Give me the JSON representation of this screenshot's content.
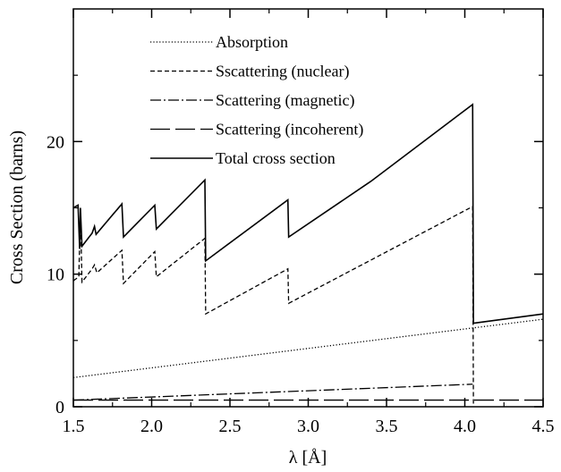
{
  "chart_data": {
    "type": "line",
    "xlabel": "λ [Å]",
    "ylabel": "Cross Section (barns)",
    "xlim": [
      1.5,
      4.5
    ],
    "ylim": [
      0,
      30
    ],
    "xticks": [
      1.5,
      2.0,
      2.5,
      3.0,
      3.5,
      4.0,
      4.5
    ],
    "xtick_labels": [
      "1.5",
      "2.0",
      "2.5",
      "3.0",
      "3.5",
      "4.0",
      "4.5"
    ],
    "yticks": [
      0,
      10,
      20
    ],
    "ytick_labels": [
      "0",
      "10",
      "20"
    ],
    "grid": false,
    "legend_position": "top-center",
    "series": [
      {
        "name": "Absorption",
        "style": "dotted",
        "x": [
          1.5,
          4.5
        ],
        "y": [
          2.2,
          6.6
        ]
      },
      {
        "name": "Sscattering (nuclear)",
        "style": "dashed",
        "x": [
          1.5,
          1.535,
          1.545,
          1.555,
          1.62,
          1.635,
          1.65,
          1.81,
          1.82,
          2.02,
          2.03,
          2.34,
          2.345,
          2.87,
          2.875,
          4.05,
          4.055
        ],
        "y": [
          9.5,
          9.8,
          14.9,
          9.4,
          10.4,
          10.7,
          10.1,
          11.8,
          9.3,
          11.7,
          9.8,
          12.7,
          7.0,
          10.4,
          7.8,
          15.1,
          0.0
        ]
      },
      {
        "name": "Scattering (magnetic)",
        "style": "dashdot",
        "x": [
          1.5,
          4.05
        ],
        "y": [
          0.5,
          1.7
        ]
      },
      {
        "name": "Scattering (incoherent)",
        "style": "longdash",
        "x": [
          1.5,
          4.5
        ],
        "y": [
          0.5,
          0.5
        ]
      },
      {
        "name": "Total cross section",
        "style": "solid",
        "x": [
          1.5,
          1.53,
          1.54,
          1.545,
          1.555,
          1.62,
          1.635,
          1.645,
          1.81,
          1.82,
          2.02,
          2.03,
          2.34,
          2.345,
          2.87,
          2.875,
          3.4,
          4.05,
          4.055,
          4.5
        ],
        "y": [
          15.0,
          15.2,
          11.9,
          15.0,
          12.1,
          13.1,
          13.6,
          13.0,
          15.3,
          12.8,
          15.2,
          13.4,
          17.1,
          11.0,
          15.6,
          12.8,
          17.0,
          22.8,
          6.3,
          7.0
        ]
      }
    ]
  }
}
